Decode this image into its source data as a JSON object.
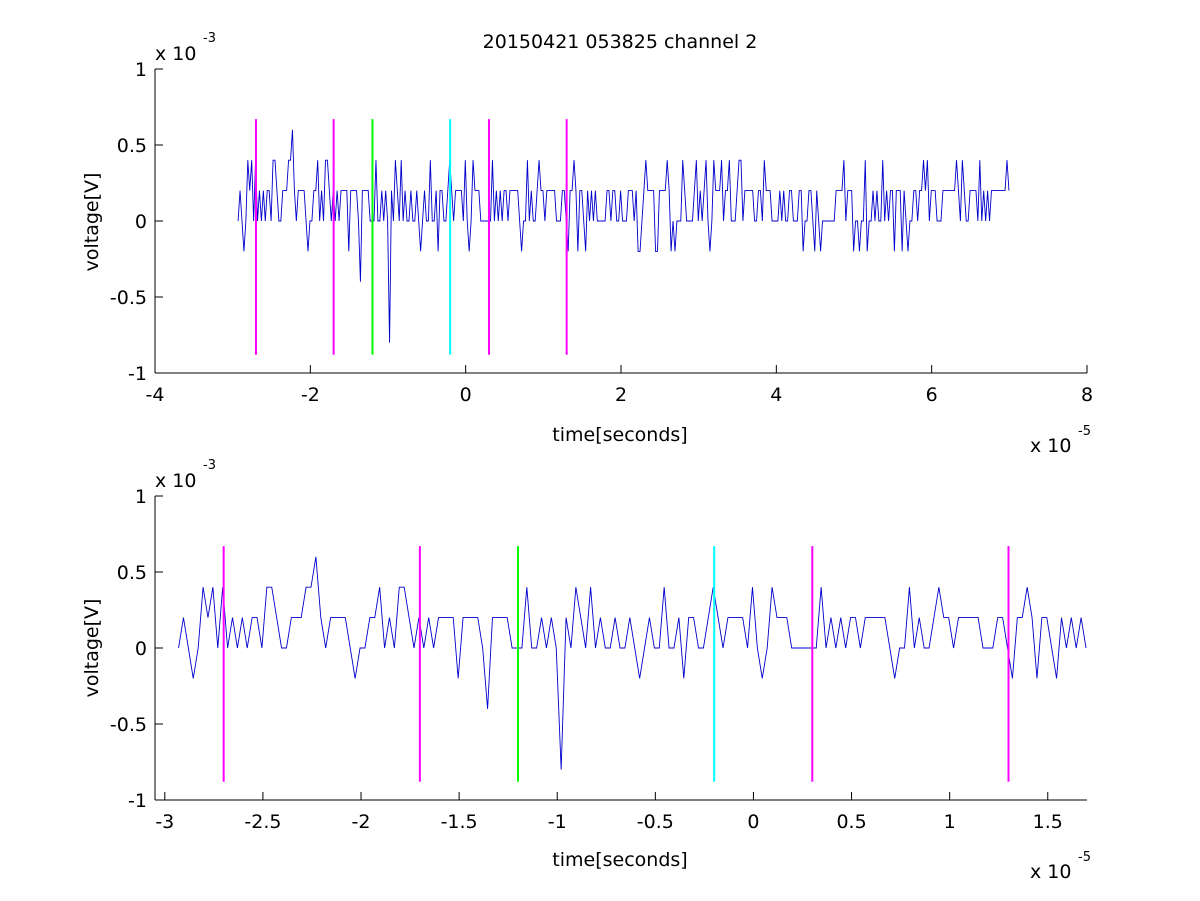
{
  "title": "20150421 053825 channel 2",
  "colors": {
    "signal": "#0000cc",
    "magenta": "#ff00ff",
    "green": "#00ff00",
    "cyan": "#00ffff",
    "axis": "#000000"
  },
  "chart_data": [
    {
      "type": "line",
      "xlabel": "time[seconds]",
      "ylabel": "voltage[V]",
      "x_multiplier": {
        "base": "x 10",
        "exponent": "-5"
      },
      "y_multiplier": {
        "base": "x 10",
        "exponent": "-3"
      },
      "xlim": [
        -4,
        8
      ],
      "ylim": [
        -1,
        1
      ],
      "x_ticks": [
        -4,
        -2,
        0,
        2,
        4,
        6,
        8
      ],
      "x_tick_labels": [
        "-4",
        "-2",
        "0",
        "2",
        "4",
        "6",
        "8"
      ],
      "y_ticks": [
        -1,
        -0.5,
        0,
        0.5,
        1
      ],
      "y_tick_labels": [
        "-1",
        "-0.5",
        "0",
        "0.5",
        "1"
      ],
      "series": [
        {
          "x_range": [
            -2.93,
            7.0
          ],
          "levels": [
            -0.2,
            0,
            0.2,
            0.4
          ],
          "baseline_high": 0.2,
          "baseline_low": 0.0,
          "max": 0.6,
          "min": -0.8
        }
      ],
      "markers": [
        {
          "x": -2.7,
          "color": "magenta",
          "y_range": [
            -0.88,
            0.67
          ]
        },
        {
          "x": -1.7,
          "color": "magenta",
          "y_range": [
            -0.88,
            0.67
          ]
        },
        {
          "x": -1.2,
          "color": "green",
          "y_range": [
            -0.88,
            0.67
          ]
        },
        {
          "x": -0.2,
          "color": "cyan",
          "y_range": [
            -0.88,
            0.67
          ]
        },
        {
          "x": 0.3,
          "color": "magenta",
          "y_range": [
            -0.88,
            0.67
          ]
        },
        {
          "x": 1.3,
          "color": "magenta",
          "y_range": [
            -0.88,
            0.67
          ]
        }
      ]
    },
    {
      "type": "line",
      "xlabel": "time[seconds]",
      "ylabel": "voltage[V]",
      "x_multiplier": {
        "base": "x 10",
        "exponent": "-5"
      },
      "y_multiplier": {
        "base": "x 10",
        "exponent": "-3"
      },
      "xlim": [
        -3.05,
        1.7
      ],
      "ylim": [
        -1,
        1
      ],
      "x_ticks": [
        -3,
        -2.5,
        -2,
        -1.5,
        -1,
        -0.5,
        0,
        0.5,
        1,
        1.5
      ],
      "x_tick_labels": [
        "-3",
        "-2.5",
        "-2",
        "-1.5",
        "-1",
        "-0.5",
        "0",
        "0.5",
        "1",
        "1.5"
      ],
      "y_ticks": [
        -1,
        -0.5,
        0,
        0.5,
        1
      ],
      "y_tick_labels": [
        "-1",
        "-0.5",
        "0",
        "0.5",
        "1"
      ],
      "series": [
        {
          "x_range": [
            -2.93,
            1.7
          ],
          "levels": [
            -0.2,
            0,
            0.2,
            0.4
          ],
          "baseline_high": 0.2,
          "baseline_low": 0.0,
          "max": 0.6,
          "min": -0.8
        }
      ],
      "markers": [
        {
          "x": -2.7,
          "color": "magenta",
          "y_range": [
            -0.88,
            0.67
          ]
        },
        {
          "x": -1.7,
          "color": "magenta",
          "y_range": [
            -0.88,
            0.67
          ]
        },
        {
          "x": -1.2,
          "color": "green",
          "y_range": [
            -0.88,
            0.67
          ]
        },
        {
          "x": -0.2,
          "color": "cyan",
          "y_range": [
            -0.88,
            0.67
          ]
        },
        {
          "x": 0.3,
          "color": "magenta",
          "y_range": [
            -0.88,
            0.67
          ]
        },
        {
          "x": 1.3,
          "color": "magenta",
          "y_range": [
            -0.88,
            0.67
          ]
        }
      ]
    }
  ]
}
